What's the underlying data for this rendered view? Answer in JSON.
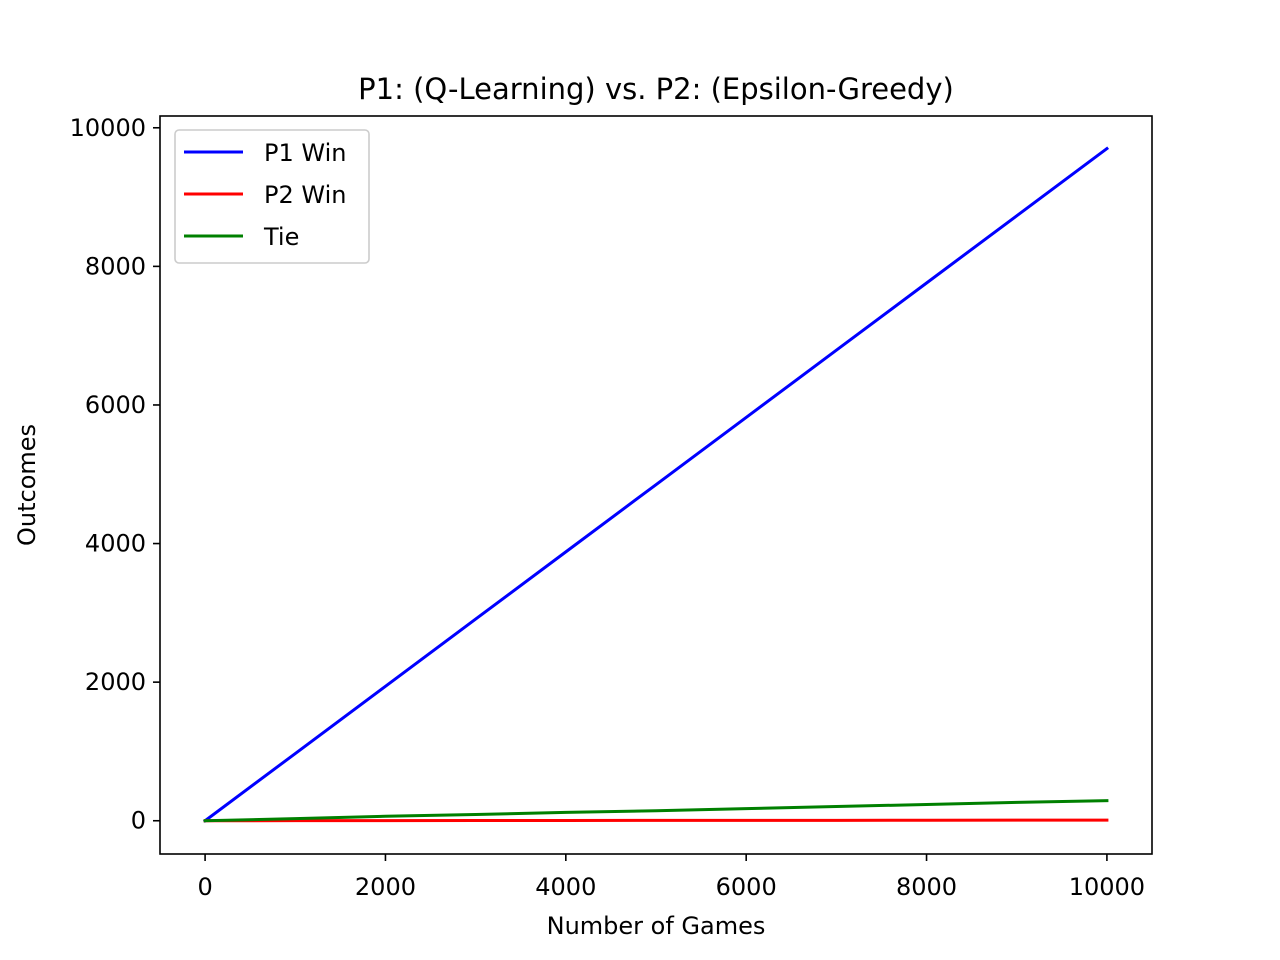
{
  "chart_data": {
    "type": "line",
    "title": "P1: (Q-Learning) vs. P2: (Epsilon-Greedy)",
    "xlabel": "Number of Games",
    "ylabel": "Outcomes",
    "xlim": [
      -500,
      10500
    ],
    "ylim": [
      -480,
      10170
    ],
    "x_ticks": [
      0,
      2000,
      4000,
      6000,
      8000,
      10000
    ],
    "y_ticks": [
      0,
      2000,
      4000,
      6000,
      8000,
      10000
    ],
    "x_tick_labels": [
      "0",
      "2000",
      "4000",
      "6000",
      "8000",
      "10000"
    ],
    "y_tick_labels": [
      "0",
      "2000",
      "4000",
      "6000",
      "8000",
      "10000"
    ],
    "grid": false,
    "legend_position": "upper-left",
    "x": [
      0,
      1000,
      2000,
      3000,
      4000,
      5000,
      6000,
      7000,
      8000,
      9000,
      10000
    ],
    "series": [
      {
        "name": "P1 Win",
        "color": "#0000ff",
        "values": [
          0,
          970,
          1940,
          2910,
          3880,
          4850,
          5820,
          6790,
          7760,
          8730,
          9700
        ]
      },
      {
        "name": "P2 Win",
        "color": "#ff0000",
        "values": [
          0,
          1,
          2,
          3,
          4,
          5,
          5,
          6,
          7,
          8,
          9
        ]
      },
      {
        "name": "Tie",
        "color": "#008000",
        "values": [
          0,
          30,
          65,
          90,
          120,
          145,
          175,
          205,
          235,
          265,
          290
        ]
      }
    ]
  }
}
